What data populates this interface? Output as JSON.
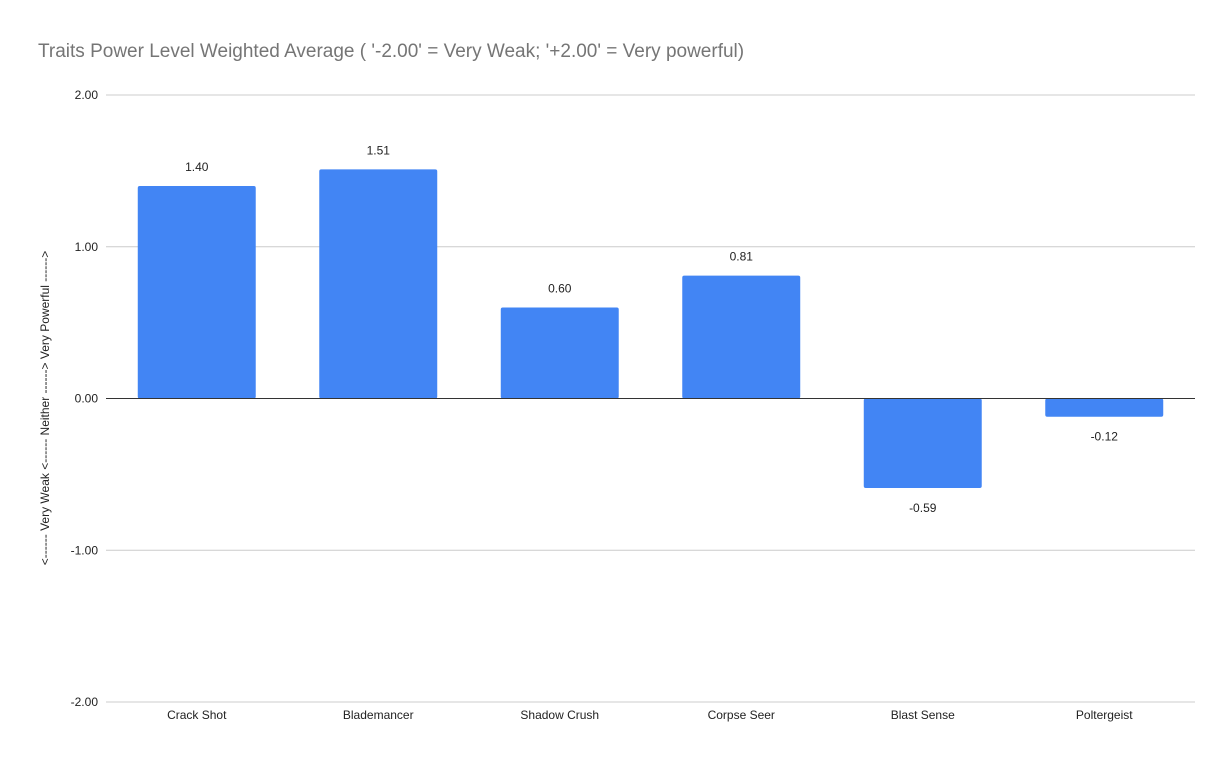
{
  "chart_data": {
    "type": "bar",
    "title": "Traits Power Level Weighted Average ( '-2.00' = Very Weak; '+2.00' = Very powerful)",
    "xlabel": "",
    "ylabel": "<------  Very Weak  <------    Neither  ------>  Very Powerful ------>",
    "categories": [
      "Crack Shot",
      "Blademancer",
      "Shadow Crush",
      "Corpse Seer",
      "Blast Sense",
      "Poltergeist"
    ],
    "values": [
      1.4,
      1.51,
      0.6,
      0.81,
      -0.59,
      -0.12
    ],
    "data_labels": [
      "1.40",
      "1.51",
      "0.60",
      "0.81",
      "-0.59",
      "-0.12"
    ],
    "ylim": [
      -2,
      2
    ],
    "y_ticks": [
      2,
      1,
      0,
      -1,
      -2
    ],
    "y_tick_labels": [
      "2.00",
      "1.00",
      "0.00",
      "-1.00",
      "-2.00"
    ],
    "grid": true,
    "legend": "none",
    "bar_color": "#4285f4"
  }
}
